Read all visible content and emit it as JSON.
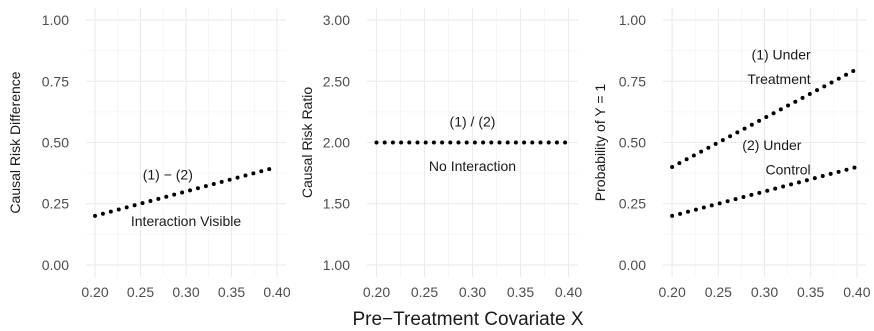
{
  "chart_data": [
    {
      "type": "line",
      "ylabel": "Causal Risk Difference",
      "xlim": [
        0.2,
        0.4
      ],
      "ylim": [
        0,
        1
      ],
      "x_ticks": [
        "0.20",
        "0.25",
        "0.30",
        "0.35",
        "0.40"
      ],
      "y_ticks": [
        "0.00",
        "0.25",
        "0.50",
        "0.75",
        "1.00"
      ],
      "grid": true,
      "series": [
        {
          "x": [
            0.2,
            0.4
          ],
          "y": [
            0.2,
            0.4
          ]
        }
      ],
      "annotations": [
        {
          "text": "(1) − (2)",
          "x": 0.28,
          "y": 0.37
        },
        {
          "text": "Interaction Visible",
          "x": 0.3,
          "y": 0.18
        }
      ]
    },
    {
      "type": "line",
      "ylabel": "Causal Risk Ratio",
      "xlim": [
        0.2,
        0.4
      ],
      "ylim": [
        1,
        3
      ],
      "x_ticks": [
        "0.20",
        "0.25",
        "0.30",
        "0.35",
        "0.40"
      ],
      "y_ticks": [
        "1.00",
        "1.50",
        "2.00",
        "2.50",
        "3.00"
      ],
      "grid": true,
      "series": [
        {
          "x": [
            0.2,
            0.4
          ],
          "y": [
            2.0,
            2.0
          ]
        }
      ],
      "annotations": [
        {
          "text": "(1) / (2)",
          "x": 0.3,
          "y": 2.17
        },
        {
          "text": "No Interaction",
          "x": 0.3,
          "y": 1.81
        }
      ]
    },
    {
      "type": "line",
      "ylabel": "Probability of Y = 1",
      "xlim": [
        0.2,
        0.4
      ],
      "ylim": [
        0,
        1
      ],
      "x_ticks": [
        "0.20",
        "0.25",
        "0.30",
        "0.35",
        "0.40"
      ],
      "y_ticks": [
        "0.00",
        "0.25",
        "0.50",
        "0.75",
        "1.00"
      ],
      "grid": true,
      "series": [
        {
          "x": [
            0.2,
            0.4
          ],
          "y": [
            0.4,
            0.8
          ]
        },
        {
          "x": [
            0.2,
            0.4
          ],
          "y": [
            0.2,
            0.4
          ]
        }
      ],
      "annotations": [
        {
          "text": "(1) Under",
          "x": 0.35,
          "y": 0.86
        },
        {
          "text": "Treatment",
          "x": 0.35,
          "y": 0.76
        },
        {
          "text": "(2) Under",
          "x": 0.34,
          "y": 0.49
        },
        {
          "text": "Control",
          "x": 0.35,
          "y": 0.39
        }
      ]
    }
  ],
  "xlabel": "Pre−Treatment Covariate X"
}
